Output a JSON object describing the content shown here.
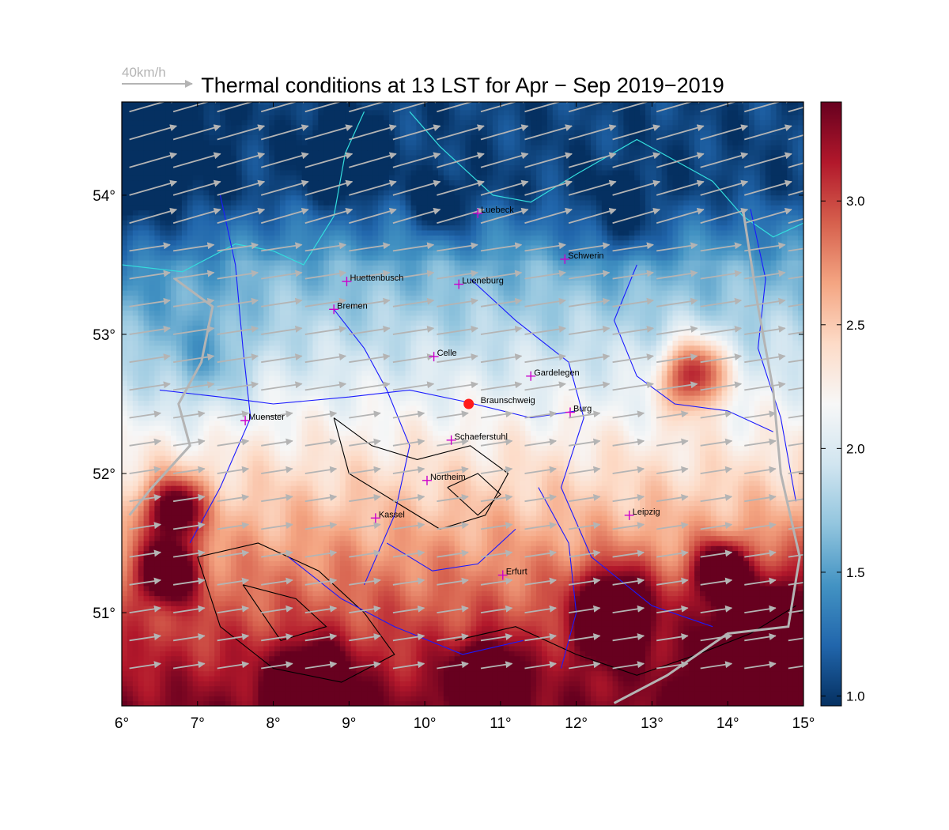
{
  "title": "Thermal conditions at 13 LST for Apr − Sep  2019−2019",
  "wind_reference": {
    "label": "40km/h",
    "color": "#b4b4b4"
  },
  "map_extent": {
    "lon": [
      6,
      15
    ],
    "lat": [
      50.33,
      54.67
    ]
  },
  "lon_ticks": [
    6,
    7,
    8,
    9,
    10,
    11,
    12,
    13,
    14,
    15
  ],
  "lat_ticks": [
    51,
    52,
    53,
    54
  ],
  "lon_tick_labels": [
    "6°",
    "7°",
    "8°",
    "9°",
    "10°",
    "11°",
    "12°",
    "13°",
    "14°",
    "15°"
  ],
  "lat_tick_labels": [
    "51°",
    "52°",
    "53°",
    "54°"
  ],
  "colorbar": {
    "range": [
      0.96,
      3.4
    ],
    "ticks": [
      1.0,
      1.5,
      2.0,
      2.5,
      3.0
    ],
    "tick_labels": [
      "1.0",
      "1.5",
      "2.0",
      "2.5",
      "3.0"
    ],
    "colormap": "RdBu_r",
    "colors": [
      "#053061",
      "#2166ac",
      "#4393c3",
      "#92c5de",
      "#d1e5f0",
      "#f7f7f7",
      "#fddbc7",
      "#f4a582",
      "#d6604d",
      "#b2182b",
      "#67001f"
    ]
  },
  "cities": [
    {
      "name": "Luebeck",
      "lon": 10.7,
      "lat": 53.87
    },
    {
      "name": "Schwerin",
      "lon": 11.85,
      "lat": 53.54
    },
    {
      "name": "Huettenbusch",
      "lon": 8.97,
      "lat": 53.38
    },
    {
      "name": "Lueneburg",
      "lon": 10.45,
      "lat": 53.36
    },
    {
      "name": "Bremen",
      "lon": 8.8,
      "lat": 53.18
    },
    {
      "name": "Celle",
      "lon": 10.12,
      "lat": 52.84
    },
    {
      "name": "Gardelegen",
      "lon": 11.4,
      "lat": 52.7
    },
    {
      "name": "Burg",
      "lon": 11.92,
      "lat": 52.44
    },
    {
      "name": "Muenster",
      "lon": 7.63,
      "lat": 52.38
    },
    {
      "name": "Schaeferstuhl",
      "lon": 10.35,
      "lat": 52.24
    },
    {
      "name": "Northeim",
      "lon": 10.03,
      "lat": 51.95
    },
    {
      "name": "Kassel",
      "lon": 9.35,
      "lat": 51.68
    },
    {
      "name": "Leipzig",
      "lon": 12.7,
      "lat": 51.7
    },
    {
      "name": "Erfurt",
      "lon": 11.03,
      "lat": 51.27
    }
  ],
  "highlight_site": {
    "name": "Braunschweig",
    "lon": 10.58,
    "lat": 52.5,
    "color": "#ff1a1a"
  },
  "colors": {
    "city_marker": "#cc00cc",
    "rivers": "#1a1aff",
    "coastline": "#33dddd",
    "borders": "#b4b4b4",
    "wind_arrows": "#b4b4b4",
    "terrain_contours": "#000000"
  }
}
